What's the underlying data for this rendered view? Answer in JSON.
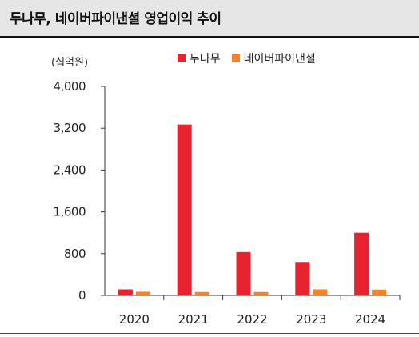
{
  "title": "두나무, 네이버파이낸셜 영업이익 추이",
  "unit_label": "(십억원)",
  "colors": {
    "series_0": "#e8232f",
    "series_1": "#f5822a"
  },
  "chart_data": {
    "type": "bar",
    "categories": [
      "2020",
      "2021",
      "2022",
      "2023",
      "2024"
    ],
    "series": [
      {
        "name": "두나무",
        "values": [
          115,
          3270,
          830,
          640,
          1200
        ]
      },
      {
        "name": "네이버파이낸셜",
        "values": [
          70,
          65,
          65,
          115,
          110
        ]
      }
    ],
    "yticks": [
      "4,000",
      "3,200",
      "2,400",
      "1,600",
      "800",
      "0"
    ],
    "ylim": [
      0,
      4000
    ],
    "legend": "top",
    "grid": false
  }
}
